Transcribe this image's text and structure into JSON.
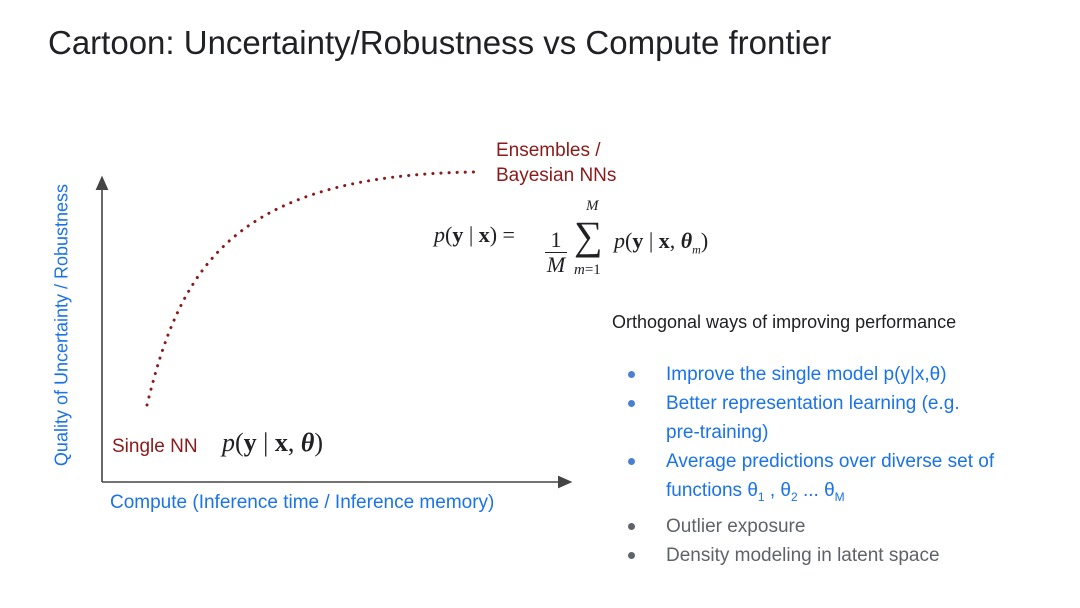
{
  "title": "Cartoon: Uncertainty/Robustness vs Compute frontier",
  "axes": {
    "y_label": "Quality of Uncertainty / Robustness",
    "x_label": "Compute (Inference time / Inference memory)"
  },
  "nodes": {
    "ensembles": {
      "line1": "Ensembles /",
      "line2": "Bayesian NNs"
    },
    "single": {
      "label": "Single NN"
    }
  },
  "formulas": {
    "single": "p(y | x, θ)",
    "ensemble": "p(y | x) = 1/M Σ_{m=1}^{M} p(y | x, θ_m)"
  },
  "orthogonal": {
    "title": "Orthogonal ways of improving performance",
    "items": [
      {
        "text": "Improve the single model p(y|x,θ)"
      },
      {
        "line1": "Better representation learning (e.g.",
        "line2": "pre-training)"
      },
      {
        "line1": "Average predictions over diverse set of",
        "line2_prefix": "functions θ",
        "s1": "1",
        "m1": " , θ",
        "s2": "2",
        "m2": " ... θ",
        "s3": "M"
      },
      {
        "text": "Outlier exposure"
      },
      {
        "text": "Density modeling in latent space"
      }
    ]
  },
  "colors": {
    "accent_blue": "#1a73e8",
    "dark_red": "#8b1a1a",
    "text": "#202124",
    "gray": "#5f6368"
  }
}
